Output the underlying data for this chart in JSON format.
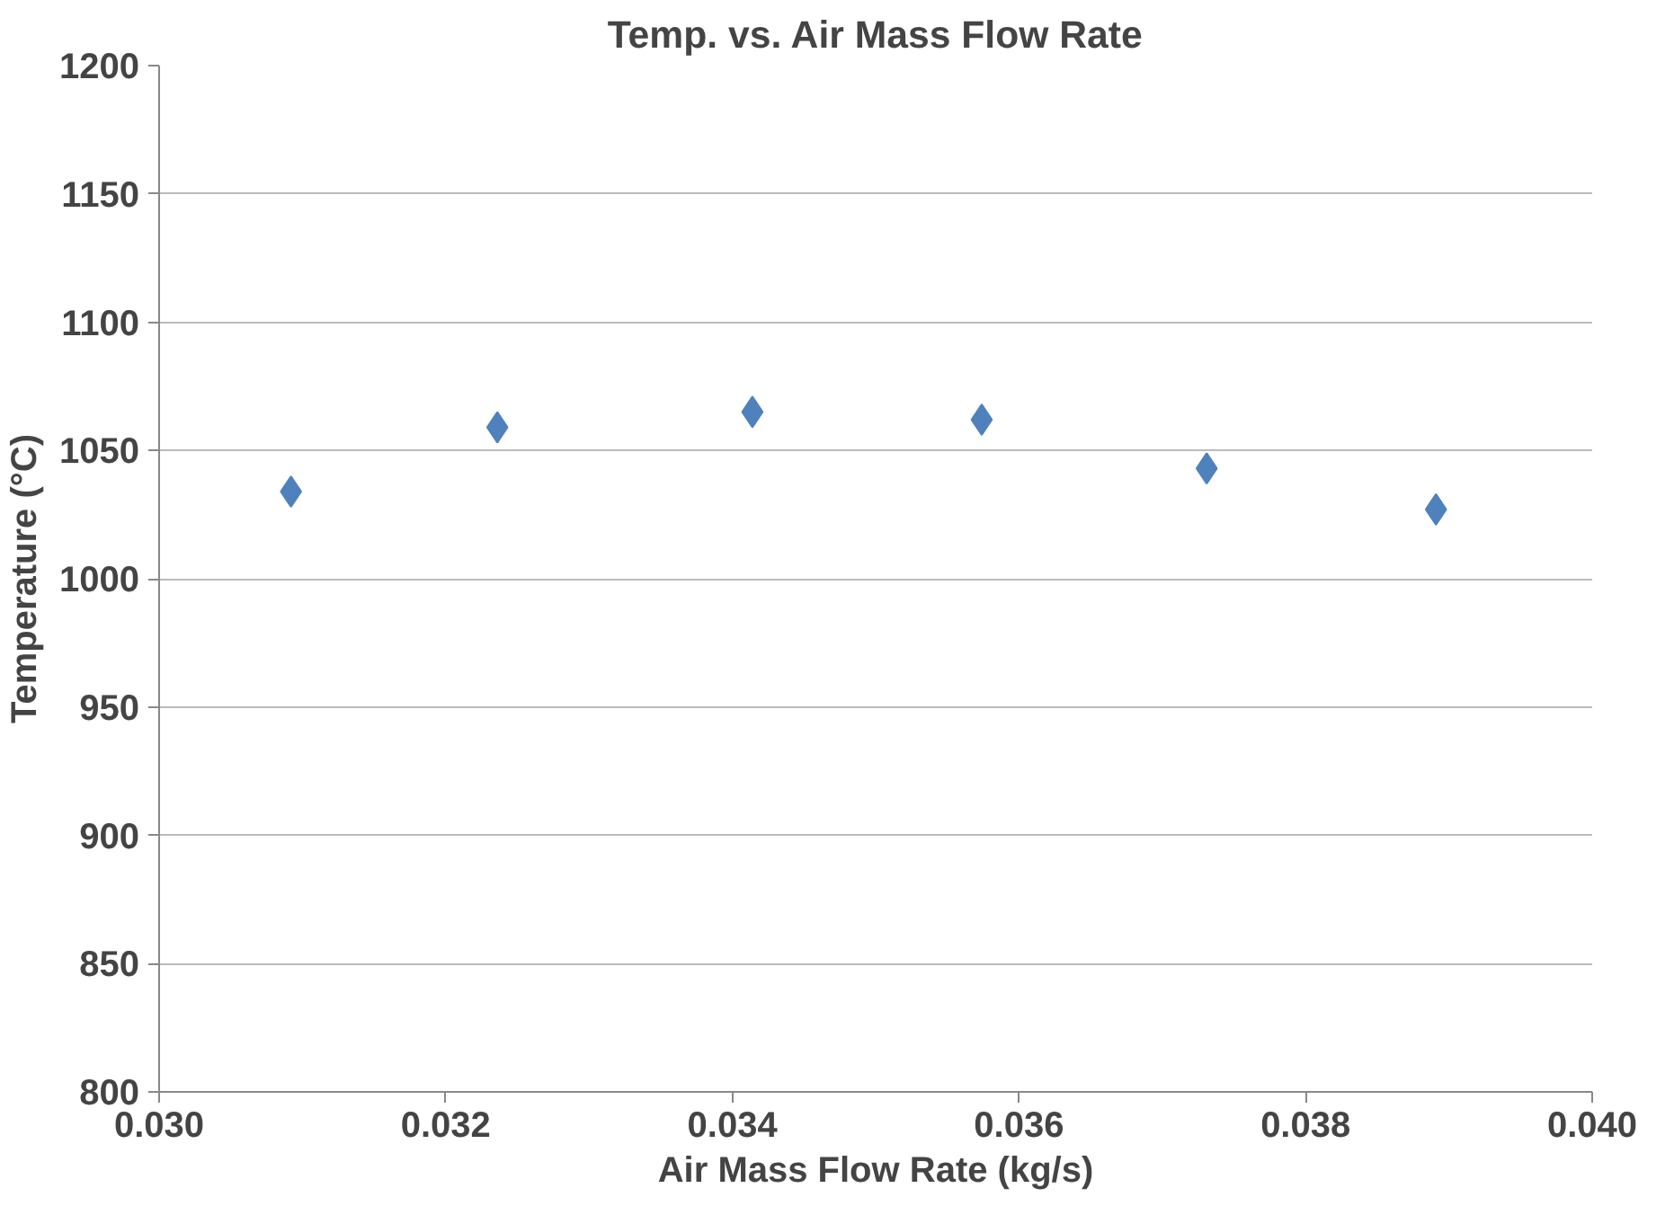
{
  "chart_data": {
    "type": "scatter",
    "title": "Temp. vs. Air Mass Flow Rate",
    "xlabel": "Air Mass Flow Rate (kg/s)",
    "ylabel": "Temperature (°C)",
    "x": [
      0.03092,
      0.03236,
      0.03414,
      0.03574,
      0.03731,
      0.03891
    ],
    "series": [
      {
        "color": "#4f81bd",
        "values": [
          1034,
          1059,
          1065,
          1062,
          1043,
          1027
        ]
      }
    ],
    "xlim": [
      0.03,
      0.04
    ],
    "xticks": [
      {
        "value": 0.03,
        "label": "0.030"
      },
      {
        "value": 0.032,
        "label": "0.032"
      },
      {
        "value": 0.034,
        "label": "0.034"
      },
      {
        "value": 0.036,
        "label": "0.036"
      },
      {
        "value": 0.038,
        "label": "0.038"
      },
      {
        "value": 0.04,
        "label": "0.040"
      }
    ],
    "ylim": [
      800,
      1200
    ],
    "yticks": [
      800,
      850,
      900,
      950,
      1000,
      1050,
      1100,
      1150,
      1200
    ],
    "grid": "y",
    "marker": "diamond"
  }
}
